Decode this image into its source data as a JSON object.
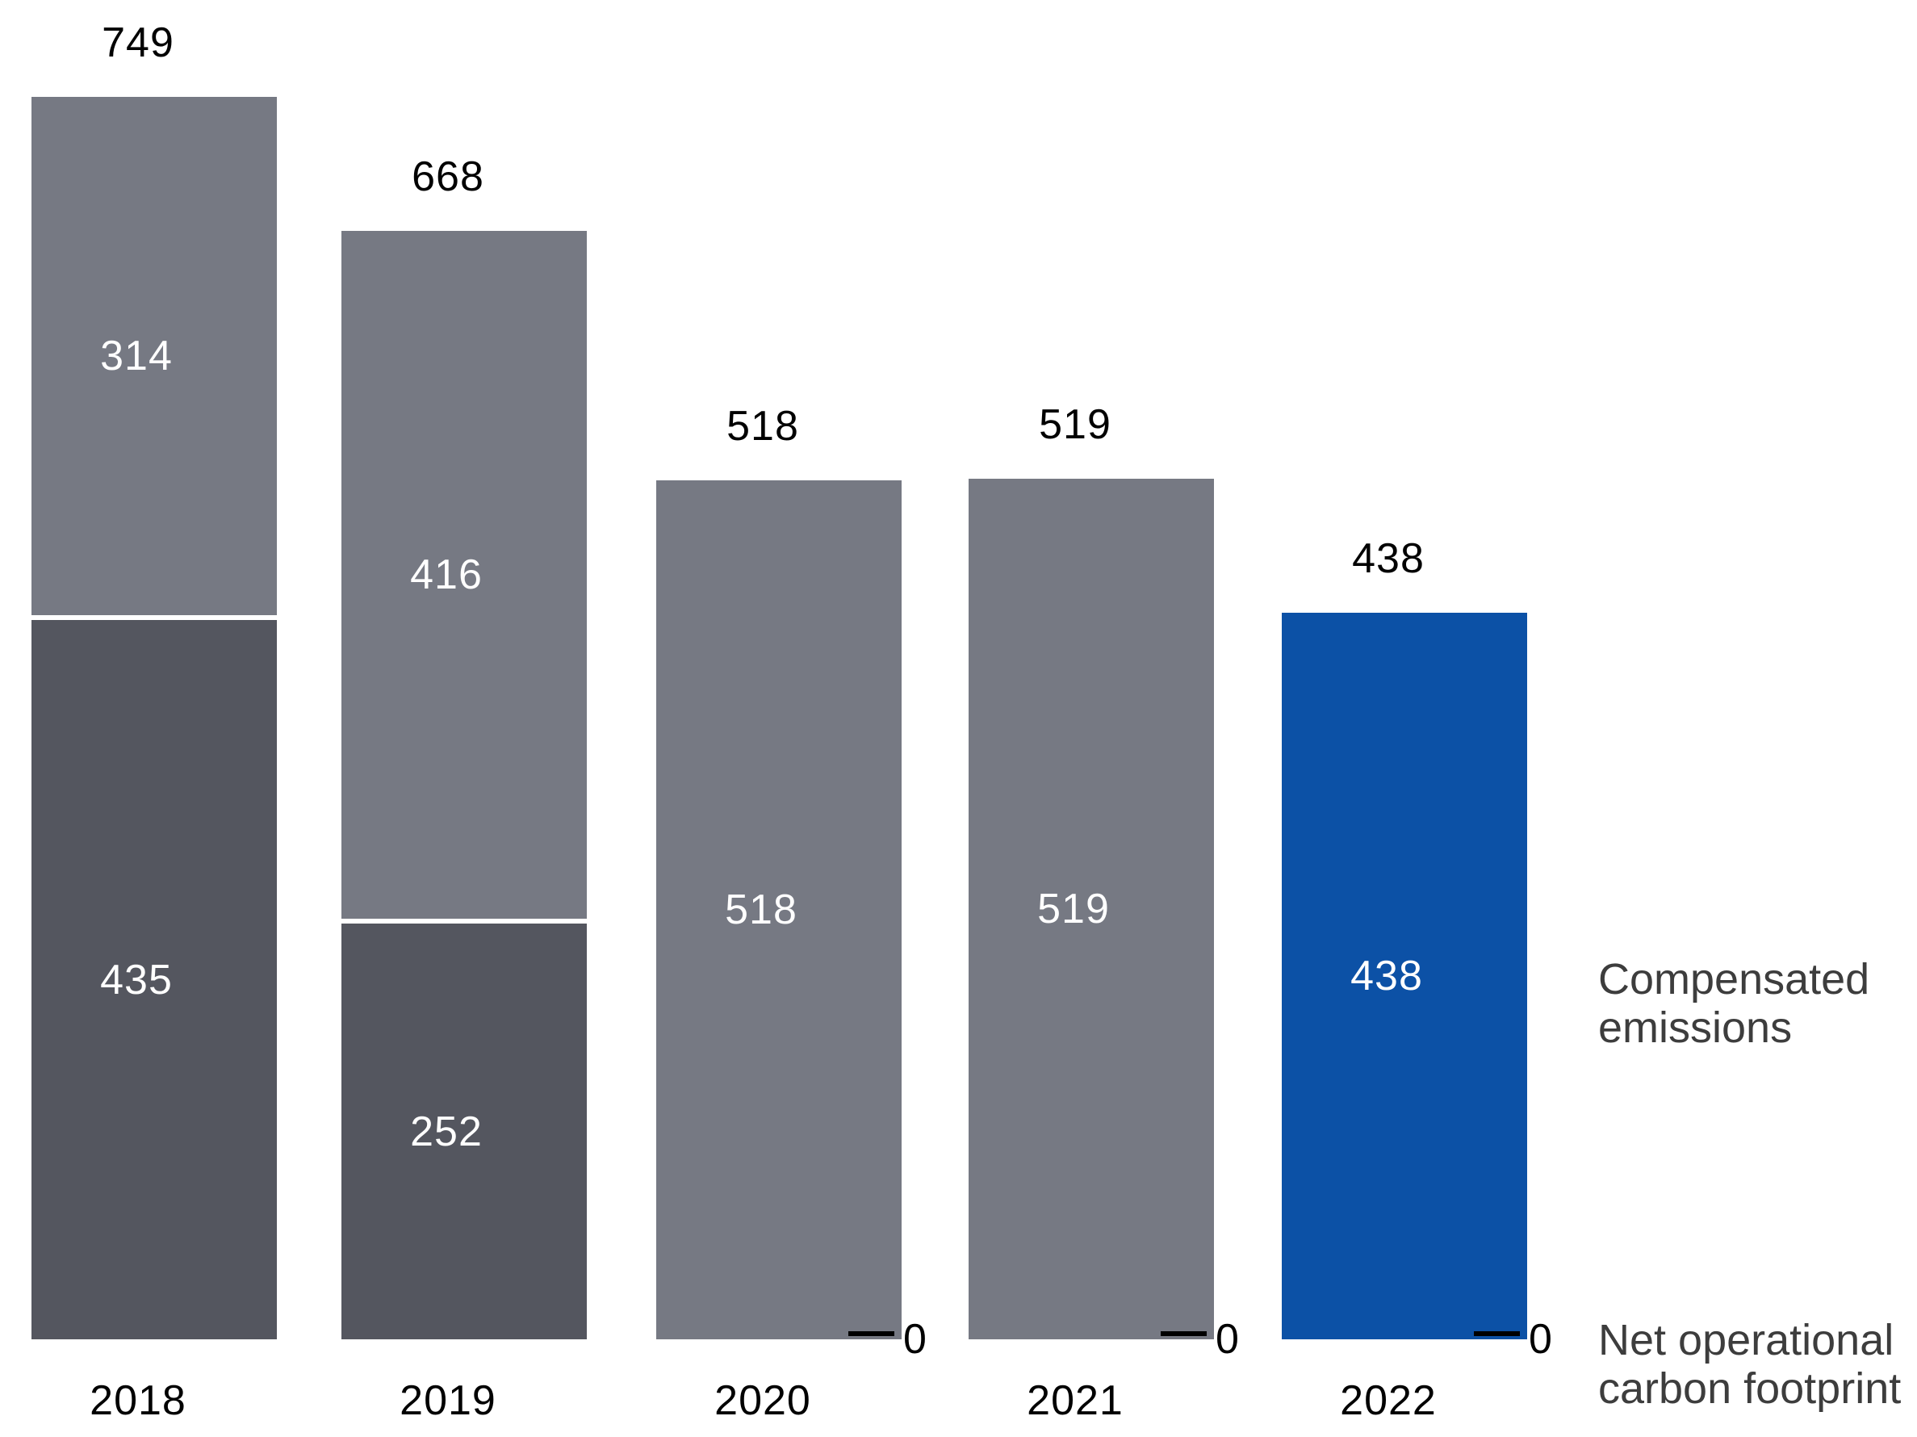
{
  "chart_data": {
    "type": "bar",
    "subtype": "stacked",
    "categories": [
      "2018",
      "2019",
      "2020",
      "2021",
      "2022"
    ],
    "totals": [
      749,
      668,
      518,
      519,
      438
    ],
    "series": [
      {
        "name": "Compensated emissions",
        "values": [
          314,
          416,
          518,
          519,
          438
        ],
        "bar_colors": [
          "#767983",
          "#767983",
          "#767983",
          "#767983",
          "#0c51a6"
        ]
      },
      {
        "name": "Net operational carbon footprint",
        "values": [
          435,
          252,
          0,
          0,
          0
        ],
        "color": "#54565f"
      }
    ],
    "zero_marker_label": "0",
    "value_labels_inside": [
      "314",
      "435",
      "416",
      "252",
      "518",
      "519",
      "438"
    ],
    "total_labels_above": [
      "749",
      "668",
      "518",
      "519",
      "438"
    ],
    "ylim": [
      0,
      749
    ],
    "grid": false,
    "legend_position": "right",
    "colors": {
      "compensated_gray": "#767983",
      "net_operational_dark": "#54565f",
      "highlight_blue": "#0c51a6",
      "label_black": "#000000",
      "label_white": "#ffffff",
      "legend_gray": "#3d3d3d",
      "background": "#ffffff"
    }
  }
}
